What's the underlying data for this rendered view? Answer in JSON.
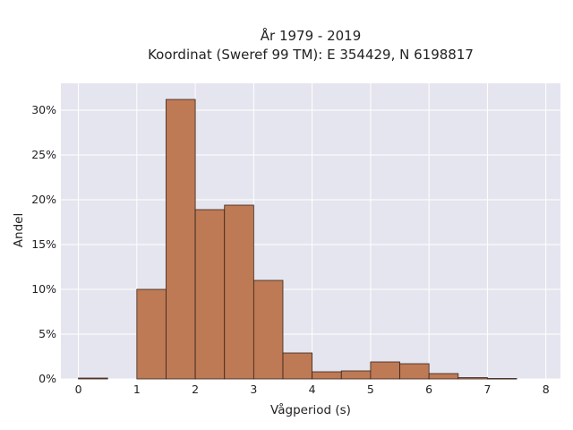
{
  "chart_data": {
    "type": "bar",
    "title_lines": [
      "År 1979 - 2019",
      "Koordinat (Sweref 99 TM): E 354429, N 6198817"
    ],
    "xlabel": "Vågperiod (s)",
    "ylabel": "Andel",
    "xlim": [
      -0.3,
      8.25
    ],
    "ylim": [
      0,
      33
    ],
    "xticks": [
      0,
      1,
      2,
      3,
      4,
      5,
      6,
      7,
      8
    ],
    "yticks": [
      0,
      5,
      10,
      15,
      20,
      25,
      30
    ],
    "ytick_format": "percent",
    "bin_width": 0.5,
    "bin_starts": [
      0,
      0.5,
      1,
      1.5,
      2,
      2.5,
      3,
      3.5,
      4,
      4.5,
      5,
      5.5,
      6,
      6.5,
      7,
      7.5
    ],
    "values": [
      0.1,
      0,
      10,
      31.2,
      18.9,
      19.4,
      11,
      2.9,
      0.8,
      0.9,
      1.9,
      1.7,
      0.6,
      0.15,
      0.05,
      0
    ],
    "grid": true,
    "legend": "none",
    "colors": {
      "bar_fill": "#bd7a55",
      "bar_edge": "#3a2418",
      "plot_background": "#e5e5ef",
      "grid": "#ffffff"
    }
  }
}
